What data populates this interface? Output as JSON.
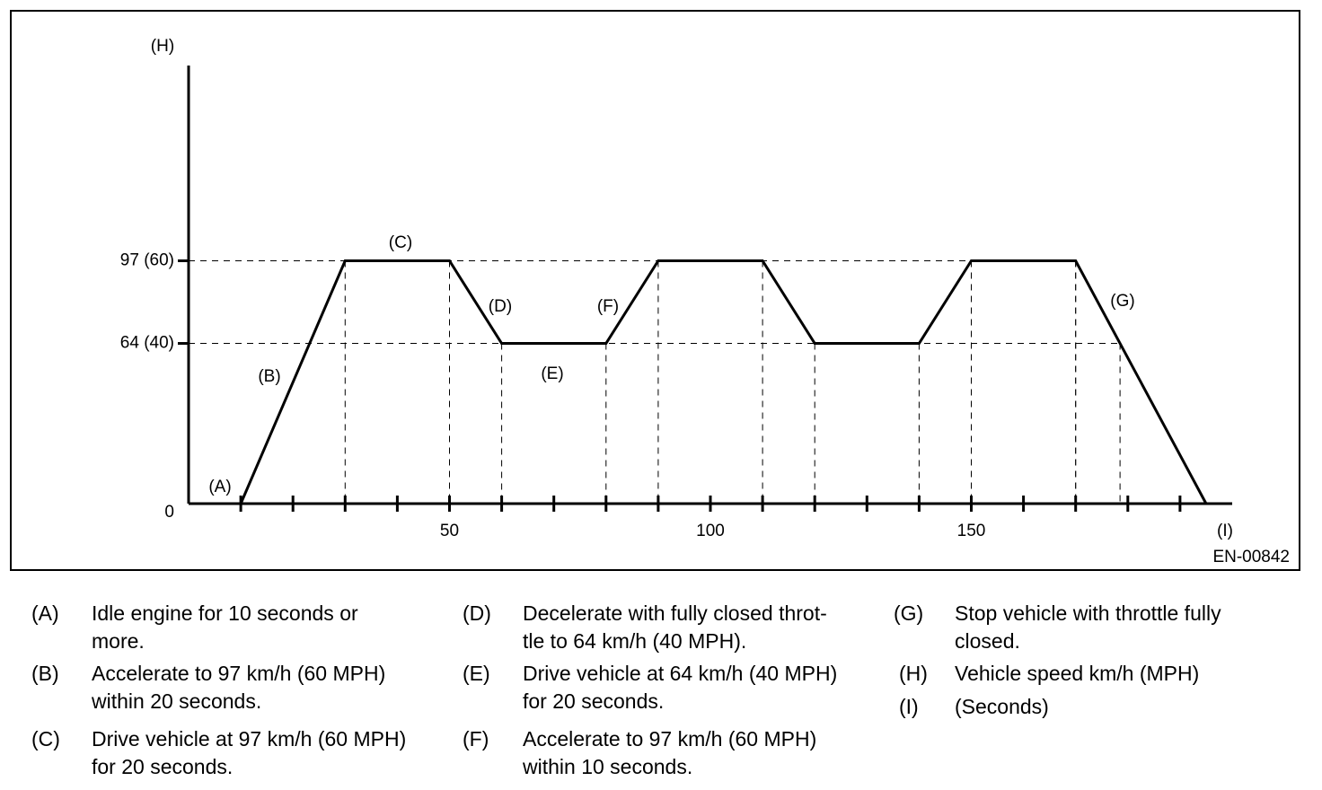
{
  "chart_data": {
    "type": "line",
    "y_axis_label": "(H)",
    "x_axis_label": "(I)",
    "figure_code": "EN-00842",
    "x": [
      10,
      30,
      50,
      60,
      80,
      90,
      110,
      120,
      140,
      150,
      170,
      195
    ],
    "series": [
      {
        "color": "#000000",
        "values": [
          0,
          97,
          97,
          64,
          64,
          97,
          97,
          64,
          64,
          97,
          97,
          0
        ]
      }
    ],
    "xlim": [
      0,
      200
    ],
    "xticks": [
      50,
      100,
      150
    ],
    "xminorticks": [
      10,
      20,
      30,
      40,
      50,
      60,
      70,
      80,
      90,
      100,
      110,
      120,
      130,
      140,
      150,
      160,
      170,
      180,
      190
    ],
    "ylim": [
      0,
      175
    ],
    "yticks": [
      0,
      {
        "value": 64,
        "label": "64 (40)"
      },
      {
        "value": 97,
        "label": "97 (60)"
      }
    ],
    "annotations": [
      "(A)",
      "(B)",
      "(C)",
      "(D)",
      "(E)",
      "(F)",
      "(G)"
    ]
  },
  "legend": [
    {
      "key": "(A)",
      "text": [
        "Idle engine for 10 seconds or",
        "more."
      ]
    },
    {
      "key": "(B)",
      "text": [
        "Accelerate to 97 km/h (60 MPH)",
        "within 20 seconds."
      ]
    },
    {
      "key": "(C)",
      "text": [
        "Drive vehicle at 97 km/h (60 MPH)",
        "for 20 seconds."
      ]
    },
    {
      "key": "(D)",
      "text": [
        "Decelerate with fully closed throt-",
        "tle to 64 km/h (40 MPH)."
      ]
    },
    {
      "key": "(E)",
      "text": [
        "Drive vehicle at 64 km/h (40 MPH)",
        "for 20 seconds."
      ]
    },
    {
      "key": "(F)",
      "text": [
        "Accelerate to 97 km/h (60 MPH)",
        "within 10 seconds."
      ]
    },
    {
      "key": "(G)",
      "text": [
        "Stop vehicle with throttle fully",
        "closed."
      ]
    },
    {
      "key": "(H)",
      "text": [
        "Vehicle speed km/h (MPH)"
      ]
    },
    {
      "key": "(I)",
      "text": [
        "(Seconds)"
      ]
    }
  ]
}
